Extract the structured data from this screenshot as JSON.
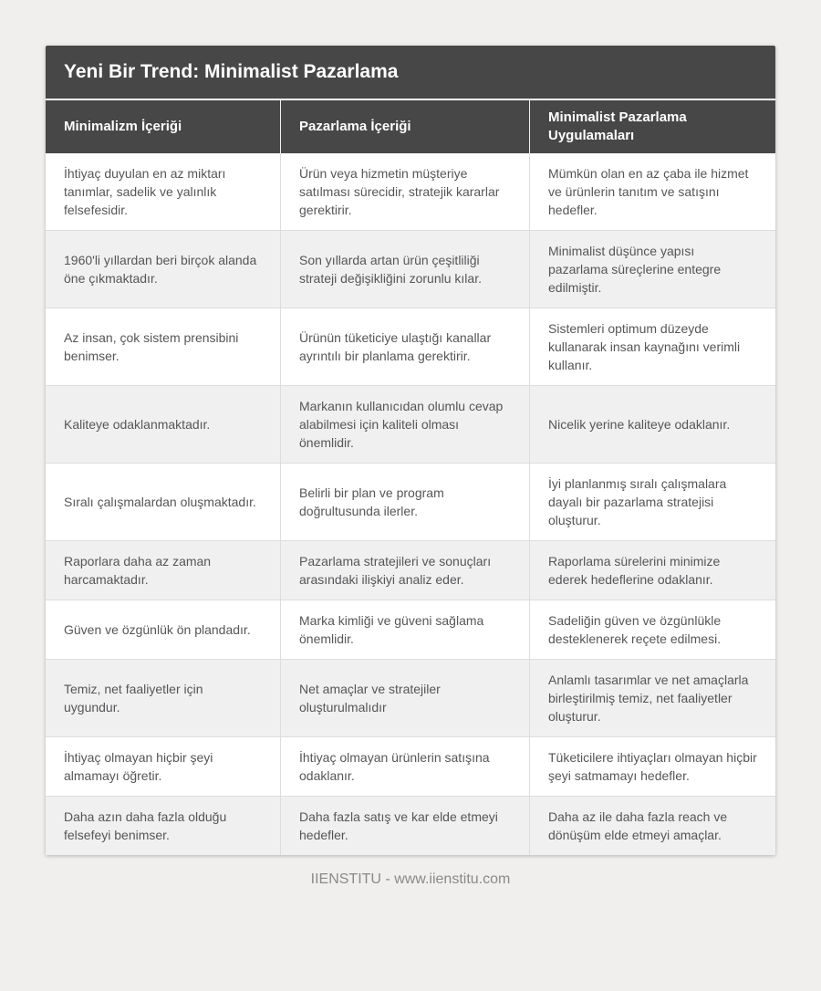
{
  "page": {
    "title": "Yeni Bir Trend: Minimalist Pazarlama",
    "footer": "IIENSTITU - www.iienstitu.com"
  },
  "colors": {
    "header_bg": "#474747",
    "header_text": "#ffffff",
    "body_text": "#565659",
    "row_alt_bg": "#f0f0f0",
    "page_bg": "#f0efed",
    "cell_border": "#dddddd"
  },
  "table": {
    "columns": [
      "Minimalizm İçeriği",
      "Pazarlama İçeriği",
      "Minimalist Pazarlama Uygulamaları"
    ],
    "rows": [
      {
        "cells": [
          "İhtiyaç duyulan en az miktarı tanımlar, sadelik ve yalınlık felsefesidir.",
          "Ürün veya hizmetin müşteriye satılması sürecidir, stratejik kararlar gerektirir.",
          "Mümkün olan en az çaba ile hizmet ve ürünlerin tanıtım ve satışını hedefler."
        ]
      },
      {
        "cells": [
          "1960'li yıllardan beri birçok alanda öne çıkmaktadır.",
          "Son yıllarda artan ürün çeşitliliği strateji değişikliğini zorunlu kılar.",
          "Minimalist düşünce yapısı pazarlama süreçlerine entegre edilmiştir."
        ]
      },
      {
        "cells": [
          "Az insan, çok sistem prensibini benimser.",
          "Ürünün tüketiciye ulaştığı kanallar ayrıntılı bir planlama gerektirir.",
          "Sistemleri optimum düzeyde kullanarak insan kaynağını verimli kullanır."
        ]
      },
      {
        "cells": [
          "Kaliteye odaklanmaktadır.",
          "Markanın kullanıcıdan olumlu cevap alabilmesi için kaliteli olması önemlidir.",
          "Nicelik yerine kaliteye odaklanır."
        ]
      },
      {
        "cells": [
          "Sıralı çalışmalardan oluşmaktadır.",
          "Belirli bir plan ve program doğrultusunda ilerler.",
          "İyi planlanmış sıralı çalışmalara dayalı bir pazarlama stratejisi oluşturur."
        ]
      },
      {
        "cells": [
          "Raporlara daha az zaman harcamaktadır.",
          "Pazarlama stratejileri ve sonuçları arasındaki ilişkiyi analiz eder.",
          "Raporlama sürelerini minimize ederek hedeflerine odaklanır."
        ]
      },
      {
        "cells": [
          "Güven ve özgünlük ön plandadır.",
          "Marka kimliği ve güveni sağlama önemlidir.",
          "Sadeliğin güven ve özgünlükle desteklenerek reçete edilmesi."
        ]
      },
      {
        "cells": [
          "Temiz, net faaliyetler için uygundur.",
          "Net amaçlar ve stratejiler oluşturulmalıdır",
          "Anlamlı tasarımlar ve net amaçlarla birleştirilmiş temiz, net faaliyetler oluşturur."
        ]
      },
      {
        "cells": [
          "İhtiyaç olmayan hiçbir şeyi almamayı öğretir.",
          "İhtiyaç olmayan ürünlerin satışına odaklanır.",
          "Tüketicilere ihtiyaçları olmayan hiçbir şeyi satmamayı hedefler."
        ]
      },
      {
        "cells": [
          "Daha azın daha fazla olduğu felsefeyi benimser.",
          "Daha fazla satış ve kar elde etmeyi hedefler.",
          "Daha az ile daha fazla reach ve dönüşüm elde etmeyi amaçlar."
        ]
      }
    ]
  }
}
